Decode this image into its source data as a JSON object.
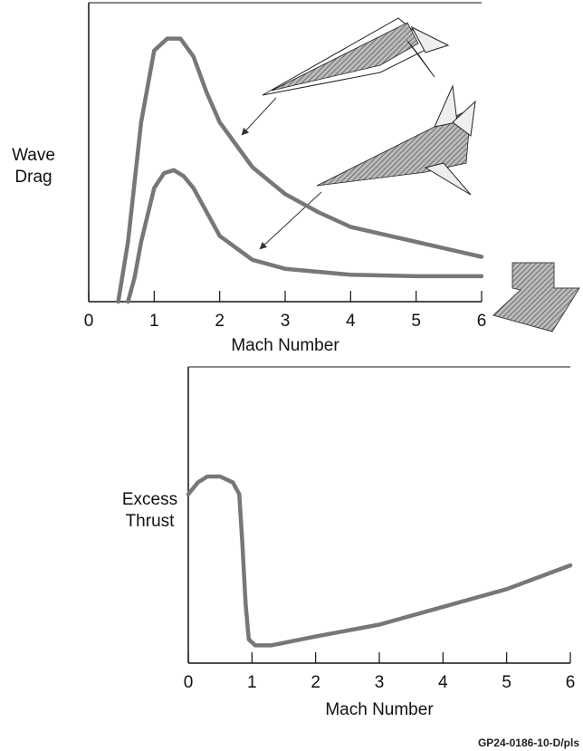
{
  "chart_data": [
    {
      "type": "line",
      "ylabel": "Wave Drag",
      "xlabel": "Mach Number",
      "xlim": [
        0,
        6
      ],
      "xticks": [
        0,
        1,
        2,
        3,
        4,
        5,
        6
      ],
      "ylim": [
        0,
        100
      ],
      "grid": false,
      "series": [
        {
          "color": "#777777",
          "x": [
            0.45,
            0.6,
            0.8,
            1.0,
            1.2,
            1.4,
            1.6,
            1.8,
            2.0,
            2.5,
            3.0,
            3.5,
            4.0,
            5.0,
            6.0
          ],
          "values": [
            0,
            20,
            60,
            84,
            88,
            88,
            82,
            70,
            60,
            45,
            36,
            30,
            25,
            20,
            15
          ]
        },
        {
          "color": "#777777",
          "x": [
            0.6,
            0.7,
            0.8,
            1.0,
            1.15,
            1.3,
            1.45,
            1.6,
            2.0,
            2.5,
            3.0,
            4.0,
            5.0,
            6.0
          ],
          "values": [
            0,
            8,
            20,
            38,
            43,
            44,
            42,
            38,
            22,
            14,
            11,
            9,
            8.5,
            8.5
          ]
        }
      ]
    },
    {
      "type": "line",
      "ylabel": "Excess Thrust",
      "xlabel": "Mach Number",
      "xlim": [
        0,
        6
      ],
      "xticks": [
        0,
        1,
        2,
        3,
        4,
        5,
        6
      ],
      "ylim": [
        0,
        100
      ],
      "grid": false,
      "series": [
        {
          "color": "#777777",
          "x": [
            0,
            0.15,
            0.3,
            0.5,
            0.7,
            0.8,
            0.85,
            0.9,
            0.95,
            1.05,
            1.3,
            2.0,
            3.0,
            4.0,
            5.0,
            6.0
          ],
          "values": [
            57,
            61,
            63,
            63,
            61,
            57,
            40,
            20,
            8,
            6,
            6,
            9,
            13,
            19,
            25,
            33
          ]
        }
      ]
    }
  ],
  "footer": "GP24-0186-10-D/pls"
}
